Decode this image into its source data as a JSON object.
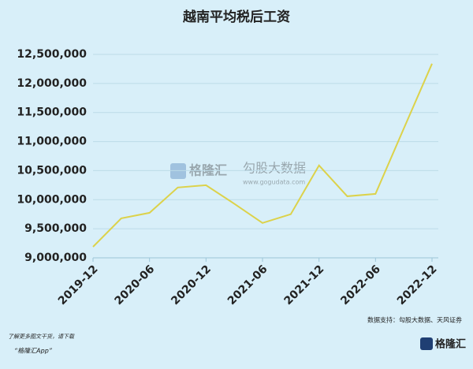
{
  "chart_data": {
    "type": "line",
    "title": "越南平均税后工资",
    "categories": [
      "2019-12",
      null,
      "2020-06",
      null,
      "2020-12",
      null,
      "2021-06",
      null,
      "2021-12",
      null,
      "2022-06",
      null,
      "2022-12"
    ],
    "values": [
      9190000,
      9680000,
      9775000,
      10210000,
      10250000,
      9930000,
      9600000,
      9750000,
      10590000,
      10060000,
      10100000,
      11225000,
      12340000
    ],
    "color": "#dcd24a",
    "ylim": [
      9000000,
      12500000
    ],
    "yticks": [
      {
        "value": 9000000,
        "label": "9,000,000"
      },
      {
        "value": 9500000,
        "label": "9,500,000"
      },
      {
        "value": 10000000,
        "label": "10,000,000"
      },
      {
        "value": 10500000,
        "label": "10,500,000"
      },
      {
        "value": 11000000,
        "label": "11,000,000"
      },
      {
        "value": 11500000,
        "label": "11,500,000"
      },
      {
        "value": 12000000,
        "label": "12,000,000"
      },
      {
        "value": 12500000,
        "label": "12,500,000"
      }
    ],
    "grid": true,
    "source": "数据支持：勾股大数据、天风证券",
    "watermark": [
      "格隆汇",
      "勾股大数据",
      "www.gogudata.com"
    ],
    "footer": [
      "了解更多图文干货，请下载",
      "“格隆汇App”"
    ],
    "logo": "格隆汇"
  }
}
